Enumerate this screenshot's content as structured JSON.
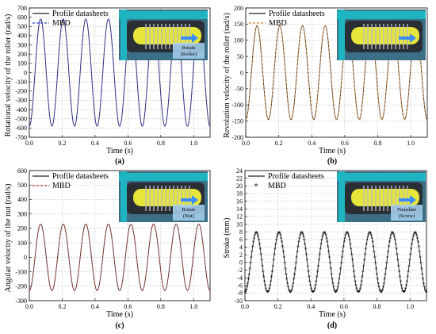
{
  "colors": {
    "profile": "#222222",
    "mbd_a": "#3b3bd6",
    "mbd_b": "#d9822b",
    "mbd_c": "#b8423c",
    "mbd_d": "#2b2b2b",
    "grid": "#b0b0b0"
  },
  "chart_data": [
    {
      "panel_label": "(a)",
      "type": "line",
      "xlabel": "Time (s)",
      "ylabel": "Rotational velocity of the roller (rad/s)",
      "xlim": [
        0,
        1.1
      ],
      "ylim": [
        -700,
        700
      ],
      "xticks": [
        0.0,
        0.2,
        0.4,
        0.6,
        0.8,
        1.0
      ],
      "yticks": [
        -700,
        -600,
        -500,
        -400,
        -300,
        -200,
        -100,
        0,
        100,
        200,
        300,
        400,
        500,
        600,
        700
      ],
      "grid": true,
      "legend": "top-left",
      "series": [
        {
          "name": "Profile datasheets",
          "waveform": "sine",
          "amplitude": 580,
          "period_s": 0.1375,
          "phase": "negative-cosine"
        },
        {
          "name": "MBD",
          "waveform": "sine",
          "amplitude": 580,
          "period_s": 0.1375,
          "phase": "negative-cosine"
        }
      ],
      "inset_labels": [
        "Rotate",
        "(Roller)"
      ]
    },
    {
      "panel_label": "(b)",
      "type": "line",
      "xlabel": "Time (s)",
      "ylabel": "Revolution velocity of the roller (rad/s)",
      "xlim": [
        0,
        1.1
      ],
      "ylim": [
        -200,
        200
      ],
      "xticks": [
        0.0,
        0.2,
        0.4,
        0.6,
        0.8,
        1.0
      ],
      "yticks": [
        -200,
        -150,
        -100,
        -50,
        0,
        50,
        100,
        150,
        200
      ],
      "grid": true,
      "legend": "top-left",
      "series": [
        {
          "name": "Profile datasheets",
          "waveform": "sine",
          "amplitude": 145,
          "period_s": 0.1375,
          "phase": "negative-cosine"
        },
        {
          "name": "MBD",
          "waveform": "sine",
          "amplitude": 145,
          "period_s": 0.1375,
          "phase": "negative-cosine"
        }
      ]
    },
    {
      "panel_label": "(c)",
      "type": "line",
      "xlabel": "Time (s)",
      "ylabel": "Angular velocity of the nut (rad/s)",
      "xlim": [
        0,
        1.1
      ],
      "ylim": [
        -300,
        600
      ],
      "xticks": [
        0.0,
        0.2,
        0.4,
        0.6,
        0.8,
        1.0
      ],
      "yticks": [
        -300,
        -200,
        -100,
        0,
        100,
        200,
        300,
        400,
        500,
        600
      ],
      "grid": true,
      "legend": "top-left",
      "series": [
        {
          "name": "Profile datasheets",
          "waveform": "sine",
          "amplitude": 230,
          "period_s": 0.1375,
          "phase": "negative-cosine"
        },
        {
          "name": "MBD",
          "waveform": "sine",
          "amplitude": 230,
          "period_s": 0.1375,
          "phase": "negative-cosine"
        }
      ],
      "inset_labels": [
        "Rotate",
        "(Nut)"
      ]
    },
    {
      "panel_label": "(d)",
      "type": "scatter",
      "xlabel": "Time (s)",
      "ylabel": "Stroke (mm)",
      "xlim": [
        0,
        1.1
      ],
      "ylim": [
        -10,
        24
      ],
      "xticks": [
        0.0,
        0.2,
        0.4,
        0.6,
        0.8,
        1.0
      ],
      "yticks": [
        -10,
        -8,
        -6,
        -4,
        -2,
        0,
        2,
        4,
        6,
        8,
        10,
        12,
        14,
        16,
        18,
        20,
        22,
        24
      ],
      "grid": true,
      "legend": "top-left",
      "series": [
        {
          "name": "Profile datasheets",
          "waveform": "sine",
          "amplitude": 7.8,
          "period_s": 0.1375,
          "phase": "negative-cosine"
        },
        {
          "name": "MBD",
          "waveform": "sine",
          "amplitude": 7.8,
          "period_s": 0.1375,
          "phase": "negative-cosine",
          "marker": "star"
        }
      ],
      "inset_labels": [
        "Translate",
        "(Screw)"
      ]
    }
  ]
}
